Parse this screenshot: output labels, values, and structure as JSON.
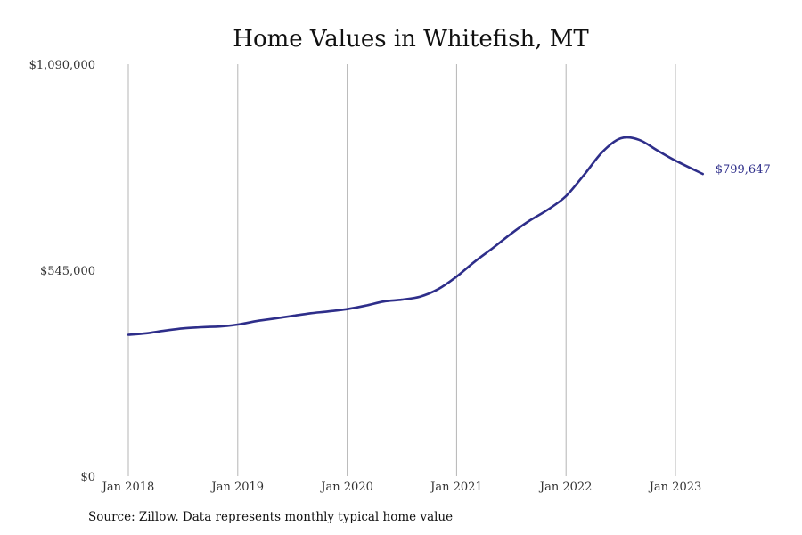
{
  "chart_data": {
    "type": "line",
    "title": "Home Values in Whitefish, MT",
    "xlabel": "",
    "ylabel": "",
    "ylim": [
      0,
      1090000
    ],
    "y_ticks": [
      "$0",
      "$545,000",
      "$1,090,000"
    ],
    "y_tick_values": [
      0,
      545000,
      1090000
    ],
    "x_ticks": [
      "Jan 2018",
      "Jan 2019",
      "Jan 2020",
      "Jan 2021",
      "Jan 2022",
      "Jan 2023"
    ],
    "x_tick_years": [
      2018,
      2019,
      2020,
      2021,
      2022,
      2023
    ],
    "grid": "vertical",
    "line_color": "#2e2e8a",
    "end_label": "$799,647",
    "series": [
      {
        "points": [
          [
            "2018-01",
            374000
          ],
          [
            "2018-03",
            378000
          ],
          [
            "2018-05",
            385000
          ],
          [
            "2018-07",
            391000
          ],
          [
            "2018-09",
            394000
          ],
          [
            "2018-11",
            396000
          ],
          [
            "2019-01",
            401000
          ],
          [
            "2019-03",
            410000
          ],
          [
            "2019-05",
            417000
          ],
          [
            "2019-07",
            424000
          ],
          [
            "2019-09",
            431000
          ],
          [
            "2019-11",
            436000
          ],
          [
            "2020-01",
            442000
          ],
          [
            "2020-03",
            451000
          ],
          [
            "2020-05",
            462000
          ],
          [
            "2020-07",
            467000
          ],
          [
            "2020-09",
            475000
          ],
          [
            "2020-11",
            495000
          ],
          [
            "2021-01",
            528000
          ],
          [
            "2021-03",
            568000
          ],
          [
            "2021-05",
            604000
          ],
          [
            "2021-07",
            642000
          ],
          [
            "2021-09",
            676000
          ],
          [
            "2021-11",
            705000
          ],
          [
            "2022-01",
            741000
          ],
          [
            "2022-03",
            798000
          ],
          [
            "2022-05",
            858000
          ],
          [
            "2022-07",
            894000
          ],
          [
            "2022-09",
            890000
          ],
          [
            "2022-11",
            862000
          ],
          [
            "2023-01",
            835000
          ],
          [
            "2023-04",
            799647
          ]
        ]
      }
    ]
  },
  "source_text": "Source: Zillow. Data represents monthly typical home value"
}
